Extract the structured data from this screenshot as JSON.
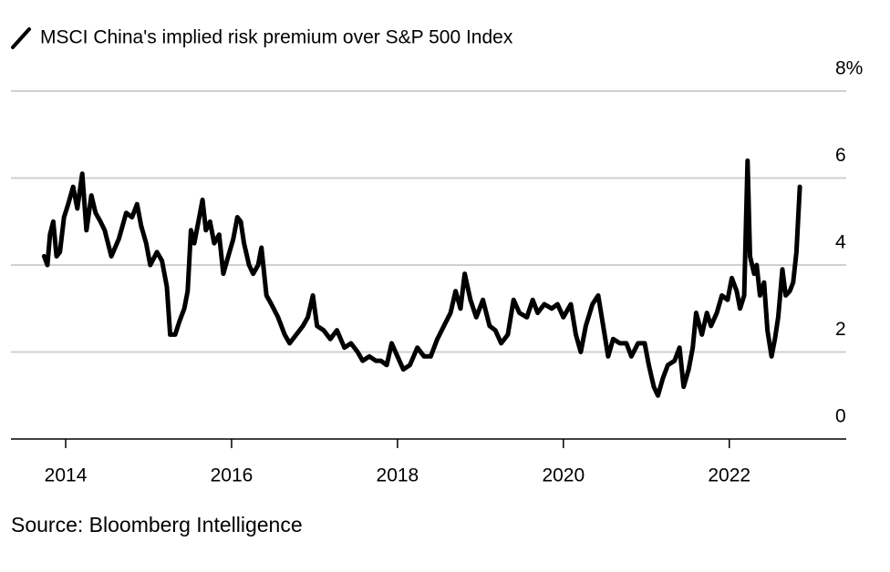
{
  "chart_data": {
    "type": "line",
    "source": "Source: Bloomberg Intelligence",
    "x": [
      2013.74,
      2013.78,
      2013.81,
      2013.85,
      2013.89,
      2013.93,
      2013.98,
      2014.03,
      2014.09,
      2014.14,
      2014.2,
      2014.25,
      2014.31,
      2014.36,
      2014.42,
      2014.47,
      2014.55,
      2014.64,
      2014.73,
      2014.8,
      2014.86,
      2014.91,
      2014.97,
      2015.02,
      2015.1,
      2015.16,
      2015.22,
      2015.26,
      2015.32,
      2015.37,
      2015.43,
      2015.47,
      2015.51,
      2015.55,
      2015.6,
      2015.65,
      2015.69,
      2015.74,
      2015.79,
      2015.85,
      2015.9,
      2015.96,
      2016.02,
      2016.07,
      2016.11,
      2016.15,
      2016.21,
      2016.26,
      2016.32,
      2016.36,
      2016.42,
      2016.48,
      2016.56,
      2016.64,
      2016.7,
      2016.78,
      2016.86,
      2016.92,
      2016.98,
      2017.03,
      2017.11,
      2017.19,
      2017.27,
      2017.36,
      2017.44,
      2017.52,
      2017.58,
      2017.66,
      2017.74,
      2017.8,
      2017.87,
      2017.93,
      2018.0,
      2018.07,
      2018.15,
      2018.24,
      2018.32,
      2018.4,
      2018.48,
      2018.56,
      2018.64,
      2018.7,
      2018.76,
      2018.81,
      2018.88,
      2018.95,
      2019.03,
      2019.11,
      2019.18,
      2019.25,
      2019.33,
      2019.4,
      2019.47,
      2019.56,
      2019.63,
      2019.69,
      2019.77,
      2019.86,
      2019.93,
      2020.0,
      2020.09,
      2020.15,
      2020.21,
      2020.27,
      2020.35,
      2020.42,
      2020.48,
      2020.54,
      2020.6,
      2020.68,
      2020.76,
      2020.82,
      2020.9,
      2020.98,
      2021.03,
      2021.09,
      2021.14,
      2021.2,
      2021.26,
      2021.34,
      2021.4,
      2021.45,
      2021.51,
      2021.56,
      2021.6,
      2021.67,
      2021.73,
      2021.78,
      2021.85,
      2021.91,
      2021.98,
      2022.03,
      2022.09,
      2022.13,
      2022.18,
      2022.22,
      2022.25,
      2022.3,
      2022.33,
      2022.37,
      2022.42,
      2022.46,
      2022.51,
      2022.55,
      2022.59,
      2022.64,
      2022.68,
      2022.73,
      2022.77,
      2022.81,
      2022.85
    ],
    "series": [
      {
        "name": "MSCI China's implied risk premium over S&P 500 Index",
        "color": "#000000",
        "values": [
          4.2,
          4.0,
          4.7,
          5.0,
          4.2,
          4.3,
          5.1,
          5.4,
          5.8,
          5.3,
          6.1,
          4.8,
          5.6,
          5.2,
          5.0,
          4.8,
          4.2,
          4.6,
          5.2,
          5.1,
          5.4,
          4.9,
          4.5,
          4.0,
          4.3,
          4.1,
          3.5,
          2.4,
          2.4,
          2.7,
          3.0,
          3.4,
          4.8,
          4.5,
          5.0,
          5.5,
          4.8,
          5.0,
          4.5,
          4.7,
          3.8,
          4.2,
          4.6,
          5.1,
          5.0,
          4.5,
          4.0,
          3.8,
          4.0,
          4.4,
          3.3,
          3.1,
          2.8,
          2.4,
          2.2,
          2.4,
          2.6,
          2.8,
          3.3,
          2.6,
          2.5,
          2.3,
          2.5,
          2.1,
          2.2,
          2.0,
          1.8,
          1.9,
          1.8,
          1.8,
          1.7,
          2.2,
          1.9,
          1.6,
          1.7,
          2.1,
          1.9,
          1.9,
          2.3,
          2.6,
          2.9,
          3.4,
          3.0,
          3.8,
          3.2,
          2.8,
          3.2,
          2.6,
          2.5,
          2.2,
          2.4,
          3.2,
          2.9,
          2.8,
          3.2,
          2.9,
          3.1,
          3.0,
          3.1,
          2.8,
          3.1,
          2.4,
          2.0,
          2.6,
          3.1,
          3.3,
          2.6,
          1.9,
          2.3,
          2.2,
          2.2,
          1.9,
          2.2,
          2.2,
          1.7,
          1.2,
          1.0,
          1.4,
          1.7,
          1.8,
          2.1,
          1.2,
          1.6,
          2.1,
          2.9,
          2.4,
          2.9,
          2.6,
          2.9,
          3.3,
          3.2,
          3.7,
          3.4,
          3.0,
          3.3,
          6.4,
          4.2,
          3.8,
          4.0,
          3.3,
          3.6,
          2.5,
          1.9,
          2.3,
          2.8,
          3.9,
          3.3,
          3.4,
          3.6,
          4.3,
          5.8
        ]
      }
    ],
    "xlim": [
      2013.34,
      2023.41
    ],
    "xticks": [
      2014,
      2016,
      2018,
      2020,
      2022
    ],
    "ylim": [
      0,
      8
    ],
    "yticks": [
      0,
      2,
      4,
      6,
      {
        "value": 8,
        "label": "8%"
      }
    ],
    "grid": true
  }
}
